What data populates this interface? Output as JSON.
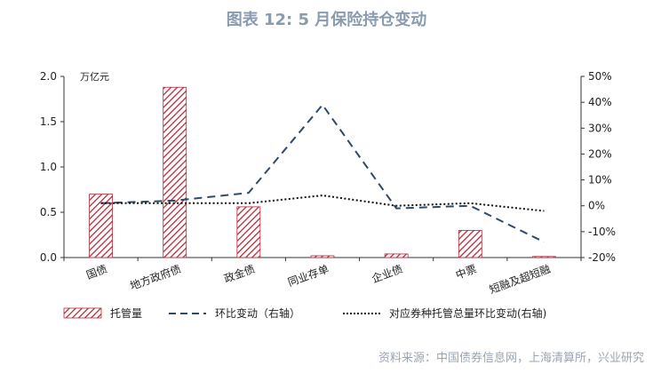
{
  "title": "图表 12: 5 月保险持仓变动",
  "source": "资料来源：中国债券信息网，上海清算所，兴业研究",
  "chart_data": {
    "type": "bar",
    "categories": [
      "国债",
      "地方政府债",
      "政金债",
      "同业存单",
      "企业债",
      "中票",
      "短融及超短融"
    ],
    "left_unit": "万亿元",
    "left_axis": {
      "min": 0,
      "max": 2.0,
      "ticks": [
        "0.0",
        "0.5",
        "1.0",
        "1.5",
        "2.0"
      ]
    },
    "right_axis": {
      "min": -20,
      "max": 50,
      "ticks": [
        "-20%",
        "-10%",
        "0%",
        "10%",
        "20%",
        "30%",
        "40%",
        "50%"
      ]
    },
    "series": [
      {
        "name": "托管量",
        "kind": "bar",
        "axis": "left",
        "values": [
          0.7,
          1.88,
          0.56,
          0.02,
          0.04,
          0.3,
          0.005
        ]
      },
      {
        "name": "环比变动（右轴）",
        "kind": "dashed-line",
        "axis": "right",
        "values": [
          1,
          2,
          5,
          39,
          -1,
          0,
          -14
        ]
      },
      {
        "name": "对应券种托管总量环比变动(右轴)",
        "kind": "dotted-line",
        "axis": "right",
        "values": [
          1,
          1,
          1,
          4,
          0,
          1,
          -2
        ]
      }
    ],
    "colors": {
      "bar": "#b52a3a",
      "dashed": "#2d4a6b",
      "dotted": "#111111"
    },
    "legend_position": "bottom"
  }
}
